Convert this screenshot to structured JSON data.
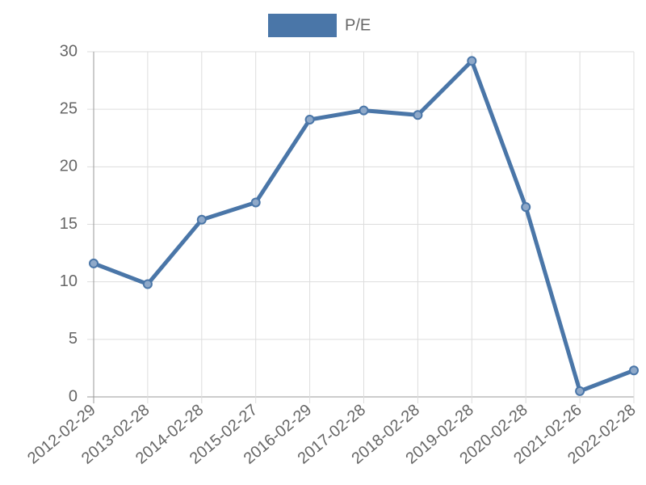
{
  "chart_data": {
    "type": "line",
    "categories": [
      "2012-02-29",
      "2013-02-28",
      "2014-02-28",
      "2015-02-27",
      "2016-02-29",
      "2017-02-28",
      "2018-02-28",
      "2019-02-28",
      "2020-02-28",
      "2021-02-26",
      "2022-02-28"
    ],
    "series": [
      {
        "name": "P/E",
        "color": "#4a76a8",
        "values": [
          11.6,
          9.8,
          15.4,
          16.9,
          24.1,
          24.9,
          24.5,
          29.2,
          16.5,
          0.5,
          2.3
        ]
      }
    ],
    "ylim": [
      0,
      30
    ],
    "yticks": [
      0,
      5,
      10,
      15,
      20,
      25,
      30
    ],
    "grid": true,
    "legend": "top"
  }
}
